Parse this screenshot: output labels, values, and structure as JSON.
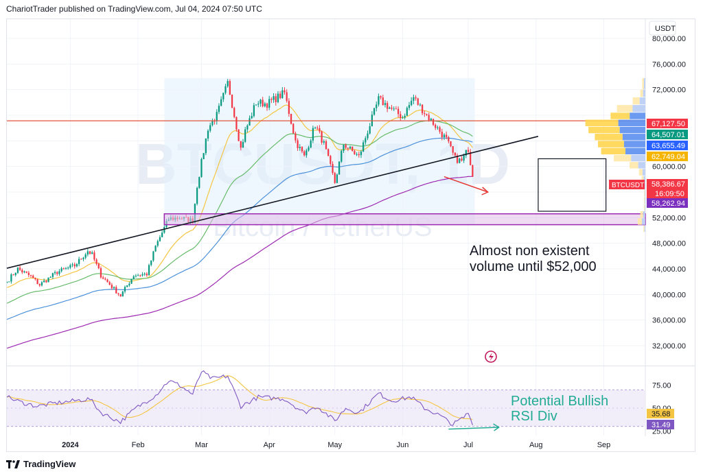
{
  "header": {
    "text": "ChariotTrader published on TradingView.com, Jul 04, 2024 07:50 UTC"
  },
  "footer": {
    "brand": "TradingView"
  },
  "colors": {
    "up": "#089981",
    "down": "#f23645",
    "ema20": "#f4c542",
    "ema50": "#66bb6a",
    "ema100": "#4a90d9",
    "ema200": "#9c27b0",
    "rsi": "#7e57c2",
    "rsi_ma": "#f4c542",
    "resistance": "#e0533a",
    "support_zone": "#9c27b0",
    "trendline": "#131722",
    "annotation_text": "#131722",
    "annotation_green": "#22ab94",
    "arrow_red": "#e53935"
  },
  "watermark": {
    "symbol": "BTCUSDT, 1D",
    "name": "Bitcoin / TetherUS"
  },
  "chart_data": [
    {
      "type": "candlestick",
      "currency": "USDT",
      "y_ticks": [
        80000,
        76000,
        72000,
        68000,
        64000,
        60000,
        56000,
        52000,
        48000,
        44000,
        40000,
        36000,
        32000
      ],
      "y_tick_labels": [
        "80,000.00",
        "76,000.00",
        "72,000.00",
        "",
        "",
        "60,000.00",
        "",
        "52,000.00",
        "48,000.00",
        "44,000.00",
        "40,000.00",
        "36,000.00",
        "32,000.00"
      ],
      "ylim": [
        29000,
        83000
      ],
      "x_tick_labels": [
        "2024",
        "Feb",
        "Mar",
        "Apr",
        "May",
        "Jun",
        "Jul",
        "Aug",
        "Sep"
      ],
      "x_range": [
        "2023-12-03",
        "2024-09-20"
      ],
      "x_tick_dates": [
        "2024-01-01",
        "2024-02-01",
        "2024-03-01",
        "2024-04-01",
        "2024-05-01",
        "2024-06-01",
        "2024-07-01",
        "2024-08-01",
        "2024-09-01"
      ],
      "close_series": {
        "start_date": "2023-12-03",
        "end_date": "2024-07-03",
        "anchors": [
          [
            "2023-12-03",
            42000
          ],
          [
            "2023-12-08",
            44000
          ],
          [
            "2023-12-14",
            42800
          ],
          [
            "2023-12-18",
            41500
          ],
          [
            "2023-12-26",
            43500
          ],
          [
            "2024-01-03",
            44500
          ],
          [
            "2024-01-09",
            46800
          ],
          [
            "2024-01-11",
            46200
          ],
          [
            "2024-01-15",
            43000
          ],
          [
            "2024-01-22",
            40500
          ],
          [
            "2024-01-24",
            39800
          ],
          [
            "2024-01-30",
            43000
          ],
          [
            "2024-02-05",
            43200
          ],
          [
            "2024-02-09",
            47500
          ],
          [
            "2024-02-15",
            51800
          ],
          [
            "2024-02-20",
            52000
          ],
          [
            "2024-02-26",
            51500
          ],
          [
            "2024-02-28",
            57000
          ],
          [
            "2024-03-04",
            66000
          ],
          [
            "2024-03-08",
            68000
          ],
          [
            "2024-03-13",
            73000
          ],
          [
            "2024-03-14",
            71500
          ],
          [
            "2024-03-19",
            62800
          ],
          [
            "2024-03-21",
            65500
          ],
          [
            "2024-03-26",
            70000
          ],
          [
            "2024-03-31",
            69800
          ],
          [
            "2024-04-08",
            71500
          ],
          [
            "2024-04-13",
            64000
          ],
          [
            "2024-04-17",
            61500
          ],
          [
            "2024-04-22",
            66500
          ],
          [
            "2024-04-26",
            63500
          ],
          [
            "2024-05-01",
            57500
          ],
          [
            "2024-05-05",
            63500
          ],
          [
            "2024-05-12",
            61500
          ],
          [
            "2024-05-16",
            65500
          ],
          [
            "2024-05-21",
            70500
          ],
          [
            "2024-05-26",
            69200
          ],
          [
            "2024-06-01",
            67700
          ],
          [
            "2024-06-06",
            70800
          ],
          [
            "2024-06-08",
            69800
          ],
          [
            "2024-06-12",
            68000
          ],
          [
            "2024-06-18",
            65500
          ],
          [
            "2024-06-21",
            64200
          ],
          [
            "2024-06-25",
            61200
          ],
          [
            "2024-06-28",
            60800
          ],
          [
            "2024-07-01",
            62800
          ],
          [
            "2024-07-03",
            58386.67
          ]
        ]
      },
      "moving_averages": [
        {
          "label": "ema20",
          "period": 20
        },
        {
          "label": "ema50",
          "period": 50
        },
        {
          "label": "ema100",
          "period": 100
        },
        {
          "label": "ema200",
          "period": 200
        }
      ],
      "price_labels": [
        {
          "value": 67127.5,
          "text": "67,127.50",
          "color": "#f23645"
        },
        {
          "value": 64507.01,
          "text": "64,507.01",
          "color": "#089981"
        },
        {
          "value": 63655.49,
          "text": "63,655.49",
          "color": "#2962ff"
        },
        {
          "value": 62749.04,
          "text": "62,749.04",
          "color": "#f4b400"
        },
        {
          "value": 58386.67,
          "text": "58,386.67",
          "color": "#f23645",
          "symbol": "BTCUSDT",
          "countdown": "16:09:50"
        },
        {
          "value": 58262.94,
          "text": "58,262.94",
          "color": "#7b2fbe"
        }
      ],
      "horizontal_lines": [
        {
          "value": 67127.5,
          "label": "resistance"
        }
      ],
      "support_zone": {
        "from_date": "2024-02-13",
        "low": 50900,
        "high": 52600
      },
      "trendline": {
        "from": [
          "2023-12-03",
          44100
        ],
        "to": [
          "2024-08-02",
          64700
        ]
      },
      "range_box": {
        "from_date": "2024-02-13",
        "to_date": "2024-07-04",
        "low": 51000,
        "high": 73800
      },
      "projection_box": {
        "from_date": "2024-08-02",
        "to_date": "2024-09-02",
        "low": 53000,
        "high": 61200
      },
      "volume_profile": {
        "bins": [
          {
            "low": 72000,
            "high": 73800,
            "total": 0.05
          },
          {
            "low": 70800,
            "high": 72000,
            "total": 0.08
          },
          {
            "low": 69600,
            "high": 70800,
            "total": 0.2
          },
          {
            "low": 68400,
            "high": 69600,
            "total": 0.45
          },
          {
            "low": 67300,
            "high": 68400,
            "total": 0.55
          },
          {
            "low": 66200,
            "high": 67300,
            "total": 0.95
          },
          {
            "low": 65100,
            "high": 66200,
            "total": 0.9
          },
          {
            "low": 64000,
            "high": 65100,
            "total": 0.8
          },
          {
            "low": 62900,
            "high": 64000,
            "total": 0.75
          },
          {
            "low": 61800,
            "high": 62900,
            "total": 0.7
          },
          {
            "low": 60700,
            "high": 61800,
            "total": 0.5
          },
          {
            "low": 59600,
            "high": 60700,
            "total": 0.25
          },
          {
            "low": 58500,
            "high": 59600,
            "total": 0.1
          },
          {
            "low": 57400,
            "high": 58500,
            "total": 0.06
          },
          {
            "low": 56300,
            "high": 57400,
            "total": 0.03
          },
          {
            "low": 55200,
            "high": 56300,
            "total": 0.02
          },
          {
            "low": 54100,
            "high": 55200,
            "total": 0.02
          },
          {
            "low": 53000,
            "high": 54100,
            "total": 0.02
          },
          {
            "low": 51900,
            "high": 53000,
            "total": 0.08
          },
          {
            "low": 50800,
            "high": 51900,
            "total": 0.12
          },
          {
            "low": 49700,
            "high": 50800,
            "total": 0.03
          }
        ]
      },
      "annotations": [
        {
          "text": "Almost non existent",
          "anchor": [
            "2024-05-18",
            54600
          ]
        },
        {
          "text": "volume until $52,000",
          "anchor": [
            "2024-05-18",
            51500
          ]
        }
      ],
      "arrows": [
        {
          "from": [
            "2024-06-20",
            58400
          ],
          "to": [
            "2024-07-10",
            56000
          ]
        }
      ]
    },
    {
      "type": "line",
      "name": "RSI",
      "y_ticks": [
        75,
        50,
        25
      ],
      "y_tick_labels": [
        "75.00",
        "50.00",
        "25.00"
      ],
      "ylim": [
        20,
        95
      ],
      "band": [
        30,
        70
      ],
      "series": [
        {
          "label": "rsi",
          "anchors": [
            [
              "2023-12-03",
              62
            ],
            [
              "2023-12-10",
              56
            ],
            [
              "2023-12-17",
              52
            ],
            [
              "2023-12-24",
              55
            ],
            [
              "2024-01-03",
              58
            ],
            [
              "2024-01-10",
              60
            ],
            [
              "2024-01-15",
              45
            ],
            [
              "2024-01-22",
              37
            ],
            [
              "2024-01-24",
              35
            ],
            [
              "2024-01-31",
              50
            ],
            [
              "2024-02-09",
              64
            ],
            [
              "2024-02-15",
              80
            ],
            [
              "2024-02-20",
              75
            ],
            [
              "2024-02-26",
              65
            ],
            [
              "2024-03-01",
              90
            ],
            [
              "2024-03-06",
              82
            ],
            [
              "2024-03-13",
              85
            ],
            [
              "2024-03-19",
              52
            ],
            [
              "2024-03-27",
              62
            ],
            [
              "2024-04-08",
              60
            ],
            [
              "2024-04-17",
              45
            ],
            [
              "2024-04-23",
              52
            ],
            [
              "2024-05-01",
              36
            ],
            [
              "2024-05-06",
              50
            ],
            [
              "2024-05-12",
              45
            ],
            [
              "2024-05-21",
              66
            ],
            [
              "2024-05-27",
              58
            ],
            [
              "2024-06-05",
              62
            ],
            [
              "2024-06-11",
              50
            ],
            [
              "2024-06-18",
              42
            ],
            [
              "2024-06-24",
              32
            ],
            [
              "2024-06-29",
              40
            ],
            [
              "2024-07-01",
              45
            ],
            [
              "2024-07-03",
              31.49
            ]
          ]
        },
        {
          "label": "rsi_ma",
          "period": 14
        }
      ],
      "value_labels": [
        {
          "value": 35.68,
          "text": "35.68",
          "color": "#f4c542"
        },
        {
          "value": 31.49,
          "text": "31.49",
          "color": "#7e57c2"
        }
      ],
      "annotations": [
        {
          "text": "Potential Bullish",
          "anchor": [
            "2024-07-12",
            52
          ]
        },
        {
          "text": "RSI Div",
          "anchor": [
            "2024-07-12",
            36
          ]
        }
      ],
      "arrows": [
        {
          "from": [
            "2024-06-22",
            27
          ],
          "to": [
            "2024-07-15",
            29
          ]
        }
      ]
    }
  ]
}
